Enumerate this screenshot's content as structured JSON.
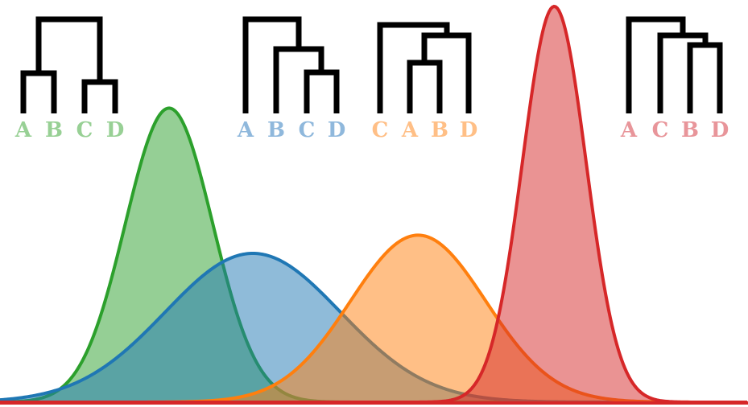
{
  "colors": {
    "green": "#2ca02c",
    "blue": "#1f77b4",
    "orange": "#ff7f0e",
    "red": "#d62728",
    "green_label": "#98d095",
    "blue_label": "#8fb8dc",
    "orange_label": "#ffbf86",
    "red_label": "#e8959a",
    "tree": "#000000"
  },
  "trees": [
    {
      "id": "green",
      "color_key": "green_label",
      "leaves": [
        "A",
        "B",
        "C",
        "D"
      ],
      "newick": "((A,B),(C,D))"
    },
    {
      "id": "blue",
      "color_key": "blue_label",
      "leaves": [
        "A",
        "B",
        "C",
        "D"
      ],
      "newick": "(A,(B,(C,D)))"
    },
    {
      "id": "orange",
      "color_key": "orange_label",
      "leaves": [
        "C",
        "A",
        "B",
        "D"
      ],
      "newick": "(C,((A,B),D))"
    },
    {
      "id": "red",
      "color_key": "red_label",
      "leaves": [
        "A",
        "C",
        "B",
        "D"
      ],
      "newick": "(A,(C,(B,D)))"
    }
  ],
  "distributions": [
    {
      "id": "green",
      "color_key": "green",
      "mean": 0.226,
      "sd": 0.0585,
      "peak": 0.743
    },
    {
      "id": "blue",
      "color_key": "blue",
      "mean": 0.338,
      "sd": 0.117,
      "peak": 0.376
    },
    {
      "id": "orange",
      "color_key": "orange",
      "mean": 0.559,
      "sd": 0.0903,
      "peak": 0.422
    },
    {
      "id": "red",
      "color_key": "red",
      "mean": 0.741,
      "sd": 0.0426,
      "peak": 1.0
    }
  ]
}
